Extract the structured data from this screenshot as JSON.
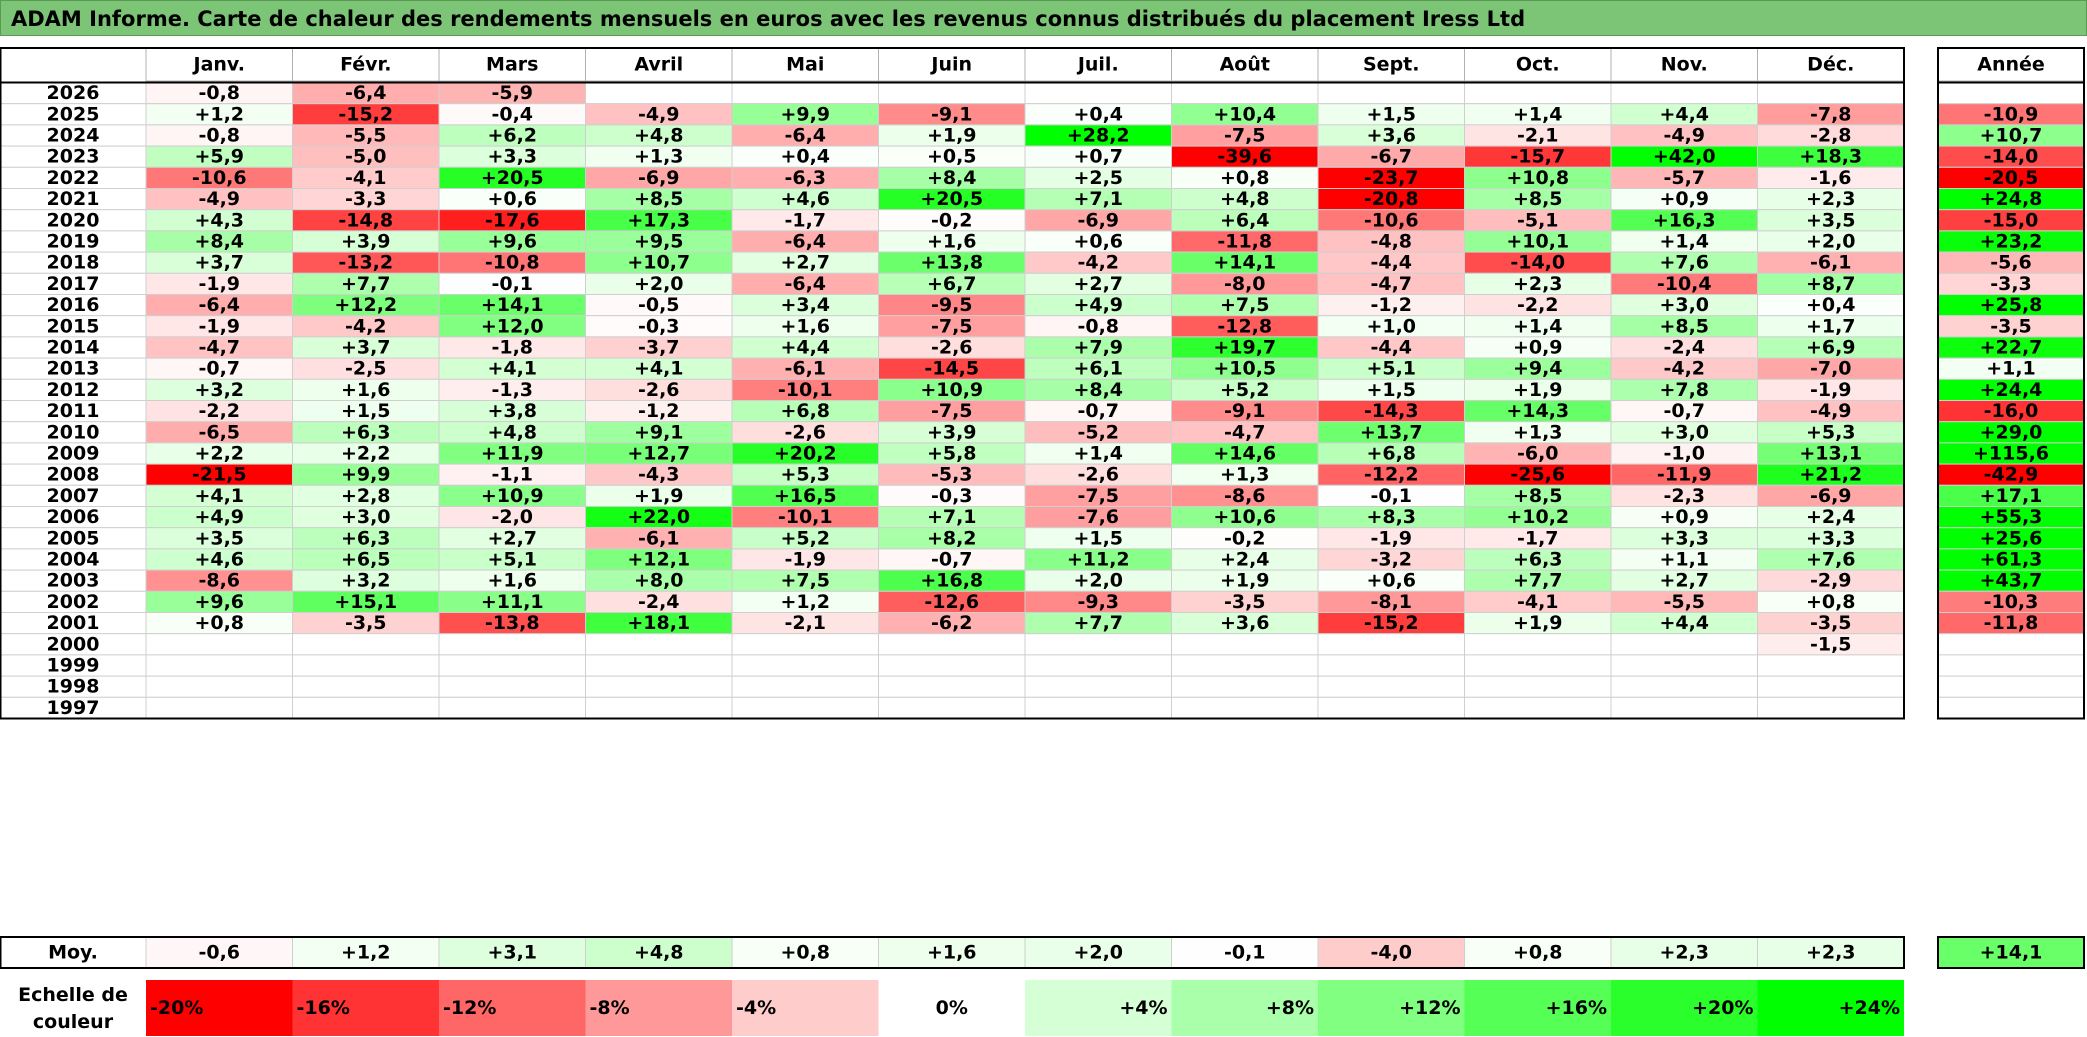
{
  "title": "ADAM Informe. Carte de chaleur des rendements mensuels en euros avec les revenus connus distribués du placement Iress Ltd",
  "chart_data": {
    "type": "heatmap",
    "columns": [
      "Janv.",
      "Févr.",
      "Mars",
      "Avril",
      "Mai",
      "Juin",
      "Juil.",
      "Août",
      "Sept.",
      "Oct.",
      "Nov.",
      "Déc."
    ],
    "year_column_label": "Année",
    "average_label": "Moy.",
    "scale_label": [
      "Echelle de",
      "couleur"
    ],
    "rows": [
      {
        "year": "2026",
        "values": [
          "-0,8",
          "-6,4",
          "-5,9",
          "",
          "",
          "",
          "",
          "",
          "",
          "",
          "",
          ""
        ],
        "annual": ""
      },
      {
        "year": "2025",
        "values": [
          "+1,2",
          "-15,2",
          "-0,4",
          "-4,9",
          "+9,9",
          "-9,1",
          "+0,4",
          "+10,4",
          "+1,5",
          "+1,4",
          "+4,4",
          "-7,8"
        ],
        "annual": "-10,9"
      },
      {
        "year": "2024",
        "values": [
          "-0,8",
          "-5,5",
          "+6,2",
          "+4,8",
          "-6,4",
          "+1,9",
          "+28,2",
          "-7,5",
          "+3,6",
          "-2,1",
          "-4,9",
          "-2,8"
        ],
        "annual": "+10,7"
      },
      {
        "year": "2023",
        "values": [
          "+5,9",
          "-5,0",
          "+3,3",
          "+1,3",
          "+0,4",
          "+0,5",
          "+0,7",
          "-39,6",
          "-6,7",
          "-15,7",
          "+42,0",
          "+18,3"
        ],
        "annual": "-14,0"
      },
      {
        "year": "2022",
        "values": [
          "-10,6",
          "-4,1",
          "+20,5",
          "-6,9",
          "-6,3",
          "+8,4",
          "+2,5",
          "+0,8",
          "-23,7",
          "+10,8",
          "-5,7",
          "-1,6"
        ],
        "annual": "-20,5"
      },
      {
        "year": "2021",
        "values": [
          "-4,9",
          "-3,3",
          "+0,6",
          "+8,5",
          "+4,6",
          "+20,5",
          "+7,1",
          "+4,8",
          "-20,8",
          "+8,5",
          "+0,9",
          "+2,3"
        ],
        "annual": "+24,8"
      },
      {
        "year": "2020",
        "values": [
          "+4,3",
          "-14,8",
          "-17,6",
          "+17,3",
          "-1,7",
          "-0,2",
          "-6,9",
          "+6,4",
          "-10,6",
          "-5,1",
          "+16,3",
          "+3,5"
        ],
        "annual": "-15,0"
      },
      {
        "year": "2019",
        "values": [
          "+8,4",
          "+3,9",
          "+9,6",
          "+9,5",
          "-6,4",
          "+1,6",
          "+0,6",
          "-11,8",
          "-4,8",
          "+10,1",
          "+1,4",
          "+2,0"
        ],
        "annual": "+23,2"
      },
      {
        "year": "2018",
        "values": [
          "+3,7",
          "-13,2",
          "-10,8",
          "+10,7",
          "+2,7",
          "+13,8",
          "-4,2",
          "+14,1",
          "-4,4",
          "-14,0",
          "+7,6",
          "-6,1"
        ],
        "annual": "-5,6"
      },
      {
        "year": "2017",
        "values": [
          "-1,9",
          "+7,7",
          "-0,1",
          "+2,0",
          "-6,4",
          "+6,7",
          "+2,7",
          "-8,0",
          "-4,7",
          "+2,3",
          "-10,4",
          "+8,7"
        ],
        "annual": "-3,3"
      },
      {
        "year": "2016",
        "values": [
          "-6,4",
          "+12,2",
          "+14,1",
          "-0,5",
          "+3,4",
          "-9,5",
          "+4,9",
          "+7,5",
          "-1,2",
          "-2,2",
          "+3,0",
          "+0,4"
        ],
        "annual": "+25,8"
      },
      {
        "year": "2015",
        "values": [
          "-1,9",
          "-4,2",
          "+12,0",
          "-0,3",
          "+1,6",
          "-7,5",
          "-0,8",
          "-12,8",
          "+1,0",
          "+1,4",
          "+8,5",
          "+1,7"
        ],
        "annual": "-3,5"
      },
      {
        "year": "2014",
        "values": [
          "-4,7",
          "+3,7",
          "-1,8",
          "-3,7",
          "+4,4",
          "-2,6",
          "+7,9",
          "+19,7",
          "-4,4",
          "+0,9",
          "-2,4",
          "+6,9"
        ],
        "annual": "+22,7"
      },
      {
        "year": "2013",
        "values": [
          "-0,7",
          "-2,5",
          "+4,1",
          "+4,1",
          "-6,1",
          "-14,5",
          "+6,1",
          "+10,5",
          "+5,1",
          "+9,4",
          "-4,2",
          "-7,0"
        ],
        "annual": "+1,1"
      },
      {
        "year": "2012",
        "values": [
          "+3,2",
          "+1,6",
          "-1,3",
          "-2,6",
          "-10,1",
          "+10,9",
          "+8,4",
          "+5,2",
          "+1,5",
          "+1,9",
          "+7,8",
          "-1,9"
        ],
        "annual": "+24,4"
      },
      {
        "year": "2011",
        "values": [
          "-2,2",
          "+1,5",
          "+3,8",
          "-1,2",
          "+6,8",
          "-7,5",
          "-0,7",
          "-9,1",
          "-14,3",
          "+14,3",
          "-0,7",
          "-4,9"
        ],
        "annual": "-16,0"
      },
      {
        "year": "2010",
        "values": [
          "-6,5",
          "+6,3",
          "+4,8",
          "+9,1",
          "-2,6",
          "+3,9",
          "-5,2",
          "-4,7",
          "+13,7",
          "+1,3",
          "+3,0",
          "+5,3"
        ],
        "annual": "+29,0"
      },
      {
        "year": "2009",
        "values": [
          "+2,2",
          "+2,2",
          "+11,9",
          "+12,7",
          "+20,2",
          "+5,8",
          "+1,4",
          "+14,6",
          "+6,8",
          "-6,0",
          "-1,0",
          "+13,1"
        ],
        "annual": "+115,6"
      },
      {
        "year": "2008",
        "values": [
          "-21,5",
          "+9,9",
          "-1,1",
          "-4,3",
          "+5,3",
          "-5,3",
          "-2,6",
          "+1,3",
          "-12,2",
          "-25,6",
          "-11,9",
          "+21,2"
        ],
        "annual": "-42,9"
      },
      {
        "year": "2007",
        "values": [
          "+4,1",
          "+2,8",
          "+10,9",
          "+1,9",
          "+16,5",
          "-0,3",
          "-7,5",
          "-8,6",
          "-0,1",
          "+8,5",
          "-2,3",
          "-6,9"
        ],
        "annual": "+17,1"
      },
      {
        "year": "2006",
        "values": [
          "+4,9",
          "+3,0",
          "-2,0",
          "+22,0",
          "-10,1",
          "+7,1",
          "-7,6",
          "+10,6",
          "+8,3",
          "+10,2",
          "+0,9",
          "+2,4"
        ],
        "annual": "+55,3"
      },
      {
        "year": "2005",
        "values": [
          "+3,5",
          "+6,3",
          "+2,7",
          "-6,1",
          "+5,2",
          "+8,2",
          "+1,5",
          "-0,2",
          "-1,9",
          "-1,7",
          "+3,3",
          "+3,3"
        ],
        "annual": "+25,6"
      },
      {
        "year": "2004",
        "values": [
          "+4,6",
          "+6,5",
          "+5,1",
          "+12,1",
          "-1,9",
          "-0,7",
          "+11,2",
          "+2,4",
          "-3,2",
          "+6,3",
          "+1,1",
          "+7,6"
        ],
        "annual": "+61,3"
      },
      {
        "year": "2003",
        "values": [
          "-8,6",
          "+3,2",
          "+1,6",
          "+8,0",
          "+7,5",
          "+16,8",
          "+2,0",
          "+1,9",
          "+0,6",
          "+7,7",
          "+2,7",
          "-2,9"
        ],
        "annual": "+43,7"
      },
      {
        "year": "2002",
        "values": [
          "+9,6",
          "+15,1",
          "+11,1",
          "-2,4",
          "+1,2",
          "-12,6",
          "-9,3",
          "-3,5",
          "-8,1",
          "-4,1",
          "-5,5",
          "+0,8"
        ],
        "annual": "-10,3"
      },
      {
        "year": "2001",
        "values": [
          "+0,8",
          "-3,5",
          "-13,8",
          "+18,1",
          "-2,1",
          "-6,2",
          "+7,7",
          "+3,6",
          "-15,2",
          "+1,9",
          "+4,4",
          "-3,5"
        ],
        "annual": "-11,8"
      },
      {
        "year": "2000",
        "values": [
          "",
          "",
          "",
          "",
          "",
          "",
          "",
          "",
          "",
          "",
          "",
          "-1,5"
        ],
        "annual": ""
      },
      {
        "year": "1999",
        "values": [
          "",
          "",
          "",
          "",
          "",
          "",
          "",
          "",
          "",
          "",
          "",
          ""
        ],
        "annual": ""
      },
      {
        "year": "1998",
        "values": [
          "",
          "",
          "",
          "",
          "",
          "",
          "",
          "",
          "",
          "",
          "",
          ""
        ],
        "annual": ""
      },
      {
        "year": "1997",
        "values": [
          "",
          "",
          "",
          "",
          "",
          "",
          "",
          "",
          "",
          "",
          "",
          ""
        ],
        "annual": ""
      }
    ],
    "averages": [
      "-0,6",
      "+1,2",
      "+3,1",
      "+4,8",
      "+0,8",
      "+1,6",
      "+2,0",
      "-0,1",
      "-4,0",
      "+0,8",
      "+2,3",
      "+2,3"
    ],
    "average_annual": "+14,1",
    "scale": [
      {
        "label": "-20%",
        "value": -20
      },
      {
        "label": "-16%",
        "value": -16
      },
      {
        "label": "-12%",
        "value": -12
      },
      {
        "label": "-8%",
        "value": -8
      },
      {
        "label": "-4%",
        "value": -4
      },
      {
        "label": "0%",
        "value": 0
      },
      {
        "label": "+4%",
        "value": 4
      },
      {
        "label": "+8%",
        "value": 8
      },
      {
        "label": "+12%",
        "value": 12
      },
      {
        "label": "+16%",
        "value": 16
      },
      {
        "label": "+20%",
        "value": 20
      },
      {
        "label": "+24%",
        "value": 24
      }
    ],
    "colors": {
      "negative_max": "#ff0000",
      "positive_max": "#00ff00",
      "neutral": "#ffffff",
      "title_background": "#7cc576"
    }
  }
}
